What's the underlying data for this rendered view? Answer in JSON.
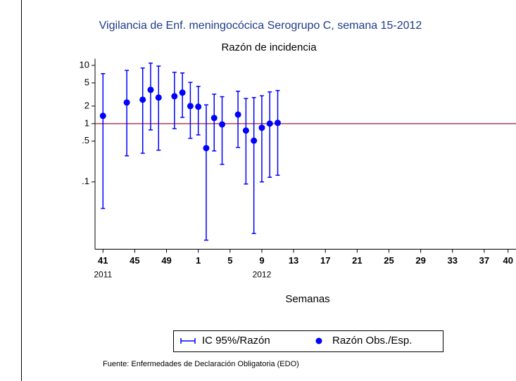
{
  "chart_data": {
    "type": "errorbar",
    "title": "Vigilancia de Enf. meningocócica Serogrupo C, semana 15-2012",
    "subtitle": "Razón de incidencia",
    "x_label": "Semanas",
    "source": "Fuente: Enfermedades de Declaración Obligatoria (EDO)",
    "log_y": true,
    "x": [
      41,
      44,
      46,
      47,
      48,
      50,
      51,
      52,
      53,
      54,
      55,
      56,
      58,
      59,
      60,
      61,
      62,
      63
    ],
    "series": [
      {
        "name": "Razón Obs./Esp.",
        "ci_name": "IC 95%/Razón",
        "color": "#0000ff",
        "values": [
          1.36,
          2.3,
          2.57,
          3.8,
          2.8,
          2.95,
          3.4,
          2.0,
          1.95,
          0.38,
          1.25,
          0.97,
          1.43,
          0.76,
          0.51,
          0.85,
          1.0,
          1.03
        ],
        "ci_low": [
          0.035,
          0.28,
          0.31,
          0.78,
          0.35,
          0.82,
          1.28,
          0.56,
          0.64,
          0.01,
          0.34,
          0.2,
          0.39,
          0.092,
          0.013,
          0.1,
          0.12,
          0.13
        ],
        "ci_high": [
          7.2,
          8.2,
          9.0,
          10.9,
          9.7,
          7.6,
          7.4,
          5.1,
          4.35,
          2.1,
          3.2,
          2.9,
          3.6,
          2.7,
          2.8,
          3.0,
          3.5,
          3.7
        ]
      }
    ],
    "reference_line": 1,
    "reference_color": "#9b1b3c",
    "xlim": [
      40,
      93
    ],
    "ylim": [
      0.007,
      13
    ],
    "yticks": [
      10,
      5,
      2,
      1,
      {
        "value": 0.5,
        "label": ".5"
      },
      {
        "value": 0.1,
        "label": ".1"
      }
    ],
    "xticks": [
      41,
      45,
      49,
      {
        "value": 53,
        "label": "1"
      },
      {
        "value": 57,
        "label": "5"
      },
      {
        "value": 61,
        "label": "9"
      },
      {
        "value": 65,
        "label": "13"
      },
      {
        "value": 69,
        "label": "17"
      },
      {
        "value": 73,
        "label": "21"
      },
      {
        "value": 77,
        "label": "25"
      },
      {
        "value": 81,
        "label": "29"
      },
      {
        "value": 85,
        "label": "33"
      },
      {
        "value": 89,
        "label": "37"
      },
      {
        "value": 92,
        "label": "40"
      }
    ],
    "year_labels": [
      {
        "value": 41,
        "label": "2011"
      },
      {
        "value": 61,
        "label": "2012"
      }
    ]
  }
}
